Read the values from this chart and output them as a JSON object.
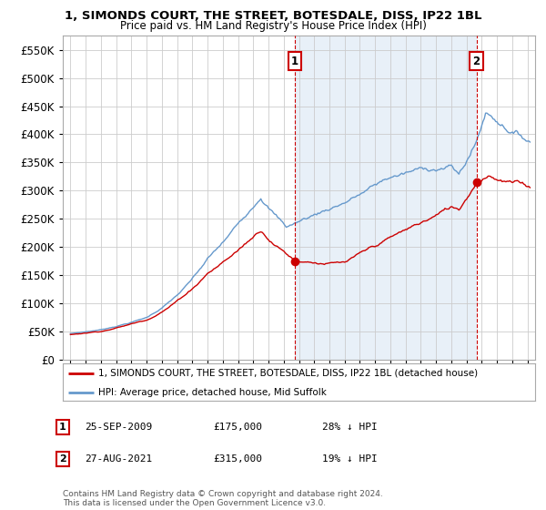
{
  "title": "1, SIMONDS COURT, THE STREET, BOTESDALE, DISS, IP22 1BL",
  "subtitle": "Price paid vs. HM Land Registry's House Price Index (HPI)",
  "legend_line1": "1, SIMONDS COURT, THE STREET, BOTESDALE, DISS, IP22 1BL (detached house)",
  "legend_line2": "HPI: Average price, detached house, Mid Suffolk",
  "annotation1": {
    "num": "1",
    "date": "25-SEP-2009",
    "price": "£175,000",
    "pct": "28% ↓ HPI",
    "x_year": 2009.73
  },
  "annotation2": {
    "num": "2",
    "date": "27-AUG-2021",
    "price": "£315,000",
    "pct": "19% ↓ HPI",
    "x_year": 2021.65
  },
  "footnote": "Contains HM Land Registry data © Crown copyright and database right 2024.\nThis data is licensed under the Open Government Licence v3.0.",
  "hpi_color": "#6699cc",
  "price_color": "#cc0000",
  "annotation_color": "#cc0000",
  "background_color": "#ffffff",
  "highlight_color": "#e8f0f8",
  "grid_color": "#cccccc",
  "ylim": [
    0,
    575000
  ],
  "yticks": [
    0,
    50000,
    100000,
    150000,
    200000,
    250000,
    300000,
    350000,
    400000,
    450000,
    500000,
    550000
  ],
  "xlim": [
    1994.5,
    2025.5
  ],
  "xticks": [
    1995,
    1996,
    1997,
    1998,
    1999,
    2000,
    2001,
    2002,
    2003,
    2004,
    2005,
    2006,
    2007,
    2008,
    2009,
    2010,
    2011,
    2012,
    2013,
    2014,
    2015,
    2016,
    2017,
    2018,
    2019,
    2020,
    2021,
    2022,
    2023,
    2024,
    2025
  ]
}
